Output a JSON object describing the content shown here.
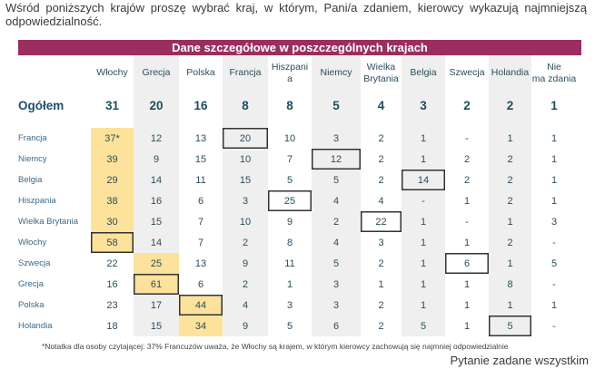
{
  "question": "Wśród poniższych krajów proszę wybrać kraj, w którym, Pani/a zdaniem, kierowcy wykazują najmniejszą odpowiedzialność.",
  "table_title": "Dane szczegółowe w poszczególnych krajach",
  "columns": [
    "Włochy",
    "Grecja",
    "Polska",
    "Francja",
    "Hiszpani a",
    "Niemcy",
    "Wielka Brytania",
    "Belgia",
    "Szwecja",
    "Holandia",
    "Nie ma zdania"
  ],
  "total": {
    "label": "Ogółem",
    "values": [
      "31",
      "20",
      "16",
      "8",
      "8",
      "5",
      "4",
      "3",
      "2",
      "2",
      "1"
    ]
  },
  "rows": [
    {
      "label": "Francja",
      "values": [
        "37*",
        "12",
        "13",
        "20",
        "10",
        "3",
        "2",
        "1",
        "-",
        "1",
        "1"
      ]
    },
    {
      "label": "Niemcy",
      "values": [
        "39",
        "9",
        "15",
        "10",
        "7",
        "12",
        "2",
        "1",
        "2",
        "2",
        "1"
      ]
    },
    {
      "label": "Belgia",
      "values": [
        "29",
        "14",
        "11",
        "15",
        "5",
        "5",
        "2",
        "14",
        "2",
        "2",
        "1"
      ]
    },
    {
      "label": "Hiszpania",
      "values": [
        "38",
        "16",
        "6",
        "3",
        "25",
        "4",
        "4",
        "-",
        "1",
        "2",
        "1"
      ]
    },
    {
      "label": "Wielka Brytania",
      "values": [
        "30",
        "15",
        "7",
        "10",
        "9",
        "2",
        "22",
        "1",
        "-",
        "1",
        "3"
      ]
    },
    {
      "label": "Włochy",
      "values": [
        "58",
        "14",
        "7",
        "2",
        "8",
        "4",
        "3",
        "1",
        "1",
        "2",
        "-"
      ]
    },
    {
      "label": "Szwecja",
      "values": [
        "22",
        "25",
        "13",
        "9",
        "11",
        "5",
        "2",
        "1",
        "6",
        "1",
        "5"
      ]
    },
    {
      "label": "Grecja",
      "values": [
        "16",
        "61",
        "6",
        "2",
        "1",
        "3",
        "1",
        "1",
        "1",
        "8",
        "-"
      ]
    },
    {
      "label": "Polska",
      "values": [
        "23",
        "17",
        "44",
        "4",
        "3",
        "3",
        "2",
        "1",
        "1",
        "1",
        "1"
      ]
    },
    {
      "label": "Holandia",
      "values": [
        "18",
        "15",
        "34",
        "9",
        "5",
        "6",
        "2",
        "5",
        "1",
        "5",
        "-"
      ]
    }
  ],
  "footnote": "*Notatka dla osoby czytającej: 37% Francuzów uważa, że Włochy są krajem, w którym kierowcy zachowują się najmniej odpowiedzialnie",
  "asked_note": "Pytanie zadane wszystkim",
  "colors": {
    "header_bar": "#9c2d5f",
    "highlight": "#fde29b",
    "shaded_column": "#efefef"
  }
}
